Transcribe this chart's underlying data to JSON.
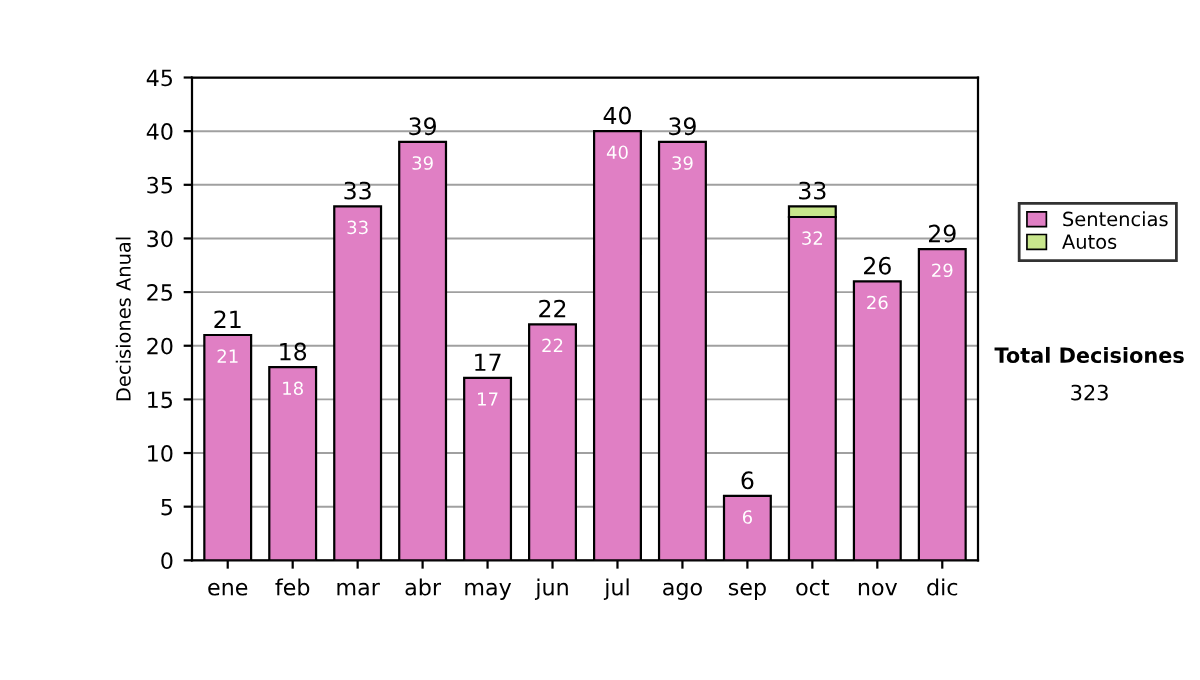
{
  "chart_data": {
    "type": "bar",
    "stacked": true,
    "ylabel": "Decisiones Anual",
    "categories": [
      "ene",
      "feb",
      "mar",
      "abr",
      "may",
      "jun",
      "jul",
      "ago",
      "sep",
      "oct",
      "nov",
      "dic"
    ],
    "series": [
      {
        "name": "Sentencias",
        "color": "#e07fc4",
        "values": [
          21,
          18,
          33,
          39,
          17,
          22,
          40,
          39,
          6,
          32,
          26,
          29
        ],
        "value_labels": [
          "21",
          "18",
          "33",
          "39",
          "17",
          "22",
          "40",
          "39",
          "6",
          "32",
          "26",
          "29"
        ]
      },
      {
        "name": "Autos",
        "color": "#c8e68c",
        "values": [
          0,
          0,
          0,
          0,
          0,
          0,
          0,
          0,
          0,
          1,
          0,
          0
        ]
      }
    ],
    "totals": [
      "21",
      "18",
      "33",
      "39",
      "17",
      "22",
      "40",
      "39",
      "6",
      "33",
      "26",
      "29"
    ],
    "ylim": [
      0,
      45
    ],
    "yticks": [
      0,
      5,
      10,
      15,
      20,
      25,
      30,
      35,
      40,
      45
    ],
    "grid": "y",
    "legend": "right",
    "annotations": [
      "Total Decisiones",
      "323"
    ]
  }
}
